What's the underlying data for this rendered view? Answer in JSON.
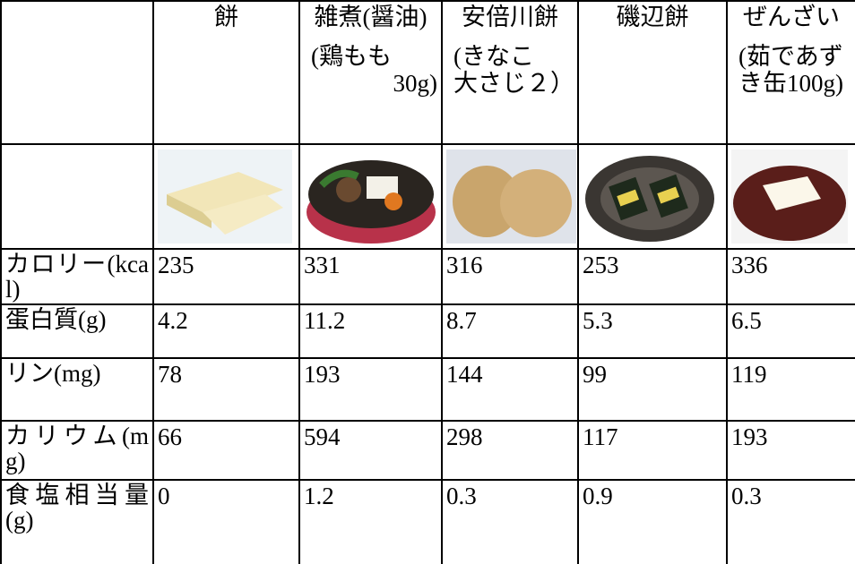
{
  "table": {
    "header": [
      {
        "name": "餅"
      },
      {
        "name": "雑煮(醤油)",
        "note": [
          "(鶏もも",
          "30g)"
        ]
      },
      {
        "name": "安倍川餅",
        "note": [
          "(きなこ",
          "大さじ２）"
        ]
      },
      {
        "name": "磯辺餅"
      },
      {
        "name": "ぜんざい",
        "note": [
          "(茹であず",
          "き缶100g)"
        ]
      }
    ],
    "rows": [
      [
        "カロリー(kcal)",
        "235",
        "331",
        "316",
        "253",
        "336"
      ],
      [
        "蛋白質(g)",
        "4.2",
        "11.2",
        "8.7",
        "5.3",
        "6.5"
      ],
      [
        "リン(mg)",
        "78",
        "193",
        "144",
        "99",
        "119"
      ],
      [
        "カリウム(mg)",
        "66",
        "594",
        "298",
        "117",
        "193"
      ],
      [
        "食塩相当量(g)",
        "0",
        "1.2",
        "0.3",
        "0.9",
        "0.3"
      ]
    ]
  }
}
